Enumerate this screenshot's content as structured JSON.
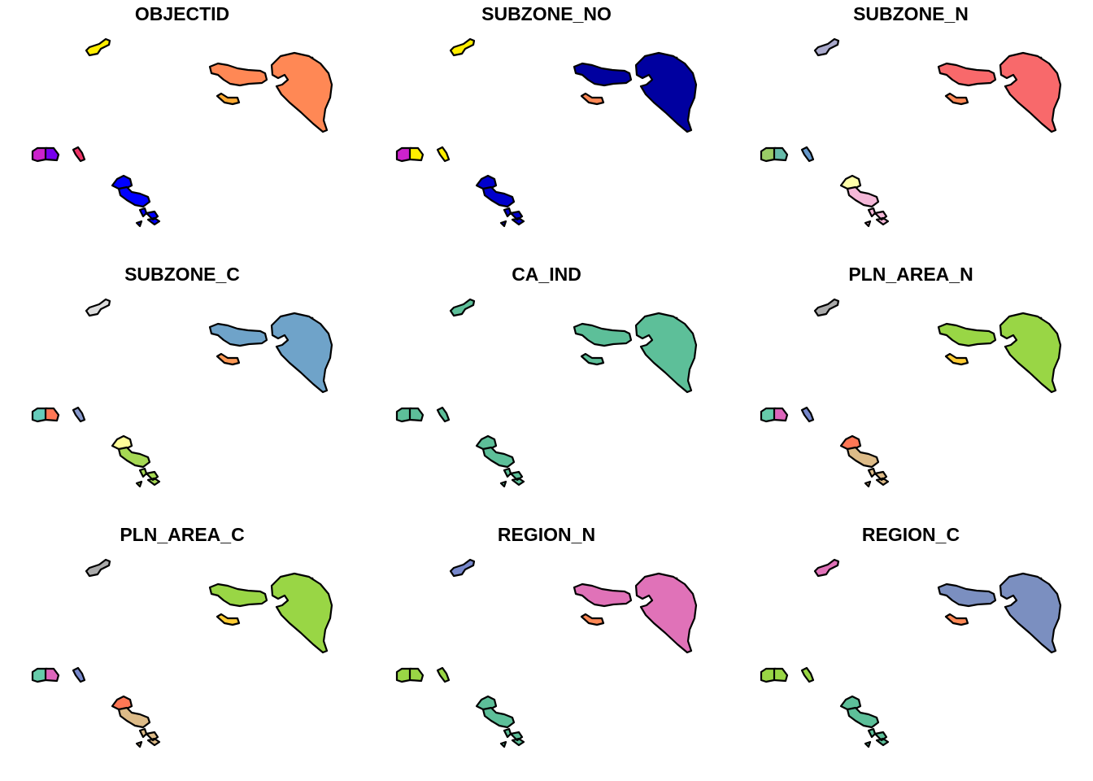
{
  "figure": {
    "panels": [
      {
        "title": "OBJECTID",
        "colors": {
          "north_islet": "#ffee00",
          "east_big": "#ff8855",
          "east_elongated": "#ff8855",
          "east_small": "#ffaa33",
          "west_a": "#cc22cc",
          "west_b": "#7700ee",
          "mid_islet": "#ee3366",
          "south_cluster": "#0000ff",
          "south_cluster_upper": "#0000ff",
          "south_small_islets": "#0000ff"
        }
      },
      {
        "title": "SUBZONE_NO",
        "colors": {
          "north_islet": "#ffee00",
          "east_big": "#0000a0",
          "east_elongated": "#0000a0",
          "east_small": "#ff8855",
          "west_a": "#cc22cc",
          "west_b": "#ffee00",
          "mid_islet": "#ffee00",
          "south_cluster": "#0000cc",
          "south_cluster_upper": "#0000cc",
          "south_small_islets": "#0000cc"
        }
      },
      {
        "title": "SUBZONE_N",
        "colors": {
          "north_islet": "#aaaacc",
          "east_big": "#f8696b",
          "east_elongated": "#f8696b",
          "east_small": "#ff8855",
          "west_a": "#99cc66",
          "west_b": "#66bbaa",
          "mid_islet": "#6699cc",
          "south_cluster": "#f4b8d8",
          "south_cluster_upper": "#ffffaa",
          "south_small_islets": "#f4b8d8"
        }
      },
      {
        "title": "SUBZONE_C",
        "colors": {
          "north_islet": "#dddddd",
          "east_big": "#6fa3c9",
          "east_elongated": "#6fa3c9",
          "east_small": "#ff9955",
          "west_a": "#66ccbb",
          "west_b": "#ff7755",
          "mid_islet": "#8899cc",
          "south_cluster": "#a6d854",
          "south_cluster_upper": "#ffff99",
          "south_small_islets": "#a6d854"
        }
      },
      {
        "title": "CA_IND",
        "colors": {
          "north_islet": "#5dbf99",
          "east_big": "#5dbf99",
          "east_elongated": "#5dbf99",
          "east_small": "#5dbf99",
          "west_a": "#5dbf99",
          "west_b": "#5dbf99",
          "mid_islet": "#5dbf99",
          "south_cluster": "#5dbf99",
          "south_cluster_upper": "#5dbf99",
          "south_small_islets": "#5dbf99"
        }
      },
      {
        "title": "PLN_AREA_N",
        "colors": {
          "north_islet": "#aaaaaa",
          "east_big": "#99d645",
          "east_elongated": "#99d645",
          "east_small": "#ffcc33",
          "west_a": "#66ccaa",
          "west_b": "#dd66bb",
          "mid_islet": "#7788cc",
          "south_cluster": "#ddbb88",
          "south_cluster_upper": "#ff7755",
          "south_small_islets": "#ddbb88"
        }
      },
      {
        "title": "PLN_AREA_C",
        "colors": {
          "north_islet": "#aaaaaa",
          "east_big": "#99d645",
          "east_elongated": "#99d645",
          "east_small": "#ffcc33",
          "west_a": "#66ccaa",
          "west_b": "#dd66bb",
          "mid_islet": "#7788cc",
          "south_cluster": "#ddbb88",
          "south_cluster_upper": "#ff7755",
          "south_small_islets": "#ddbb88"
        }
      },
      {
        "title": "REGION_N",
        "colors": {
          "north_islet": "#7788cc",
          "east_big": "#e072b8",
          "east_elongated": "#e072b8",
          "east_small": "#ff8855",
          "west_a": "#99d645",
          "west_b": "#99d645",
          "mid_islet": "#99d645",
          "south_cluster": "#5dbf99",
          "south_cluster_upper": "#5dbf99",
          "south_small_islets": "#5dbf99"
        }
      },
      {
        "title": "REGION_C",
        "colors": {
          "north_islet": "#e072b8",
          "east_big": "#7b8fc0",
          "east_elongated": "#7b8fc0",
          "east_small": "#ff8855",
          "west_a": "#99d645",
          "west_b": "#99d645",
          "mid_islet": "#99d645",
          "south_cluster": "#5dbf99",
          "south_cluster_upper": "#5dbf99",
          "south_small_islets": "#5dbf99"
        }
      }
    ]
  }
}
